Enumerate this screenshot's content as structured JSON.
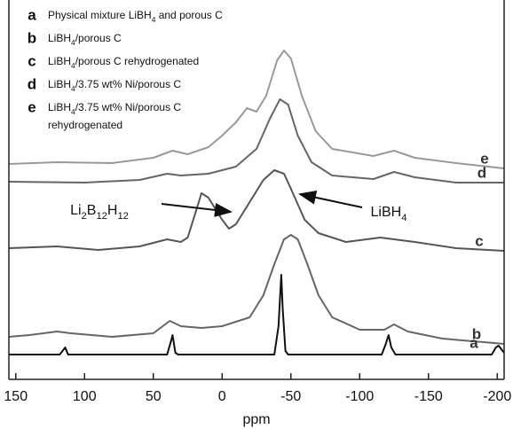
{
  "chart_data": {
    "type": "line",
    "xlabel": "ppm",
    "xlim": [
      155,
      -205
    ],
    "ylim": [
      0,
      428
    ],
    "xticks": [
      150,
      100,
      50,
      0,
      -50,
      -100,
      -150,
      -200
    ],
    "annotations": [
      "Li2B12H12",
      "LiBH4"
    ],
    "series": [
      {
        "name": "a",
        "label": "Physical mixture LiBH4 and porous C",
        "color": "#111111",
        "x": [
          155,
          118,
          114,
          112,
          40,
          37,
          36,
          34,
          32,
          -38,
          -41,
          -43,
          -44,
          -46,
          -48,
          -116,
          -119,
          -121,
          -123,
          -126,
          -196,
          -199,
          -201,
          -205
        ],
        "values": [
          28,
          28,
          36,
          28,
          28,
          44,
          50,
          30,
          28,
          28,
          60,
          118,
          80,
          32,
          28,
          28,
          40,
          50,
          36,
          28,
          28,
          36,
          38,
          30
        ]
      },
      {
        "name": "b",
        "label": "LiBH4/porous C",
        "color": "#666666",
        "x": [
          155,
          140,
          120,
          110,
          80,
          50,
          38,
          30,
          15,
          0,
          -20,
          -30,
          -38,
          -45,
          -50,
          -55,
          -62,
          -70,
          -80,
          -100,
          -118,
          -125,
          -135,
          -160,
          -190,
          -205
        ],
        "values": [
          48,
          50,
          54,
          52,
          48,
          52,
          66,
          60,
          58,
          60,
          70,
          95,
          130,
          158,
          163,
          158,
          130,
          95,
          70,
          56,
          56,
          62,
          54,
          46,
          42,
          40
        ]
      },
      {
        "name": "c",
        "label": "LiBH4/porous C rehydrogenated",
        "color": "#555555",
        "x": [
          155,
          120,
          90,
          60,
          40,
          30,
          25,
          20,
          15,
          10,
          0,
          -5,
          -10,
          -20,
          -30,
          -38,
          -45,
          -50,
          -60,
          -70,
          -90,
          -115,
          -140,
          -170,
          -205
        ],
        "values": [
          148,
          150,
          146,
          150,
          158,
          155,
          160,
          185,
          210,
          205,
          180,
          170,
          175,
          200,
          225,
          236,
          232,
          215,
          180,
          165,
          155,
          160,
          155,
          148,
          145
        ]
      },
      {
        "name": "d",
        "label": "LiBH4/3.75 wt% Ni/porous C",
        "color": "#666666",
        "x": [
          155,
          100,
          60,
          40,
          30,
          10,
          -10,
          -25,
          -35,
          -42,
          -48,
          -55,
          -65,
          -80,
          -110,
          -125,
          -140,
          -170,
          -205
        ],
        "values": [
          223,
          222,
          225,
          232,
          230,
          232,
          240,
          260,
          295,
          316,
          310,
          275,
          245,
          230,
          226,
          234,
          228,
          222,
          222
        ]
      },
      {
        "name": "e",
        "label": [
          "LiBH4/3.75 wt% Ni/porous C",
          "rehydrogenated"
        ],
        "color": "#999999",
        "x": [
          155,
          120,
          80,
          50,
          36,
          25,
          10,
          0,
          -10,
          -18,
          -25,
          -32,
          -40,
          -45,
          -50,
          -58,
          -68,
          -80,
          -110,
          -125,
          -140,
          -170,
          -205
        ],
        "values": [
          243,
          245,
          244,
          250,
          258,
          254,
          262,
          275,
          290,
          306,
          302,
          320,
          360,
          371,
          362,
          320,
          280,
          260,
          252,
          258,
          250,
          244,
          238
        ]
      }
    ]
  }
}
